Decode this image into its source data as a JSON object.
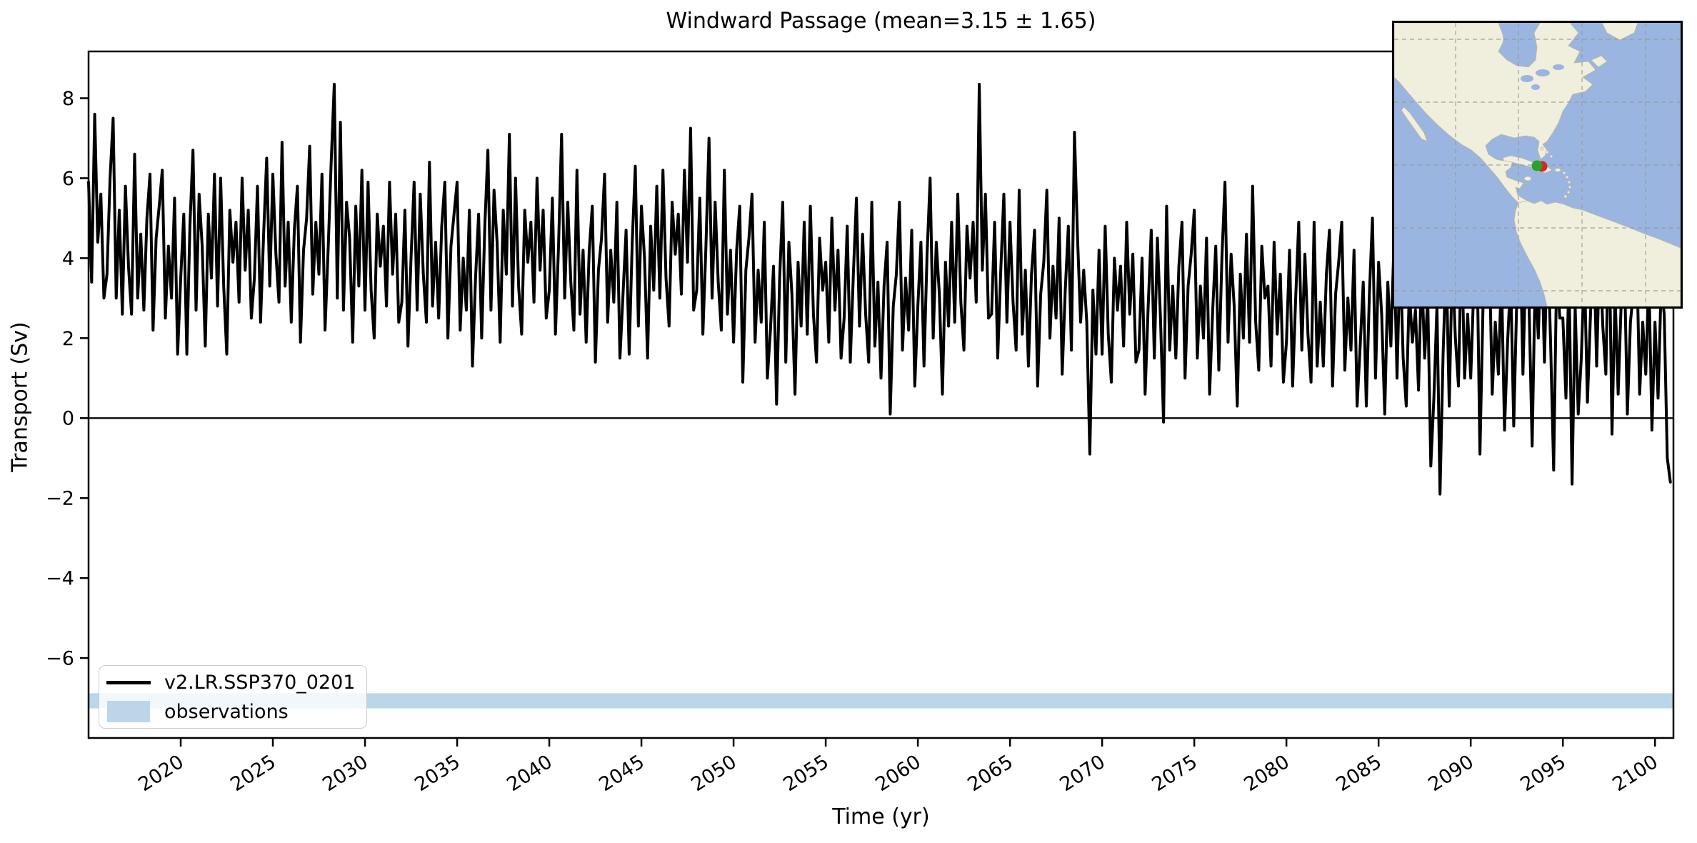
{
  "title": "Windward Passage (mean=3.15 ± 1.65)",
  "axes": {
    "ylabel": "Transport (Sv)",
    "xlabel": "Time (yr)"
  },
  "legend": {
    "entries": [
      {
        "label": "v2.LR.SSP370_0201",
        "type": "line",
        "color": "#000000"
      },
      {
        "label": "observations",
        "type": "patch",
        "color": "#bcd6e8"
      }
    ]
  },
  "chart_data": {
    "type": "line",
    "title": "Windward Passage (mean=3.15 ± 1.65)",
    "xlabel": "Time (yr)",
    "ylabel": "Transport (Sv)",
    "xlim": [
      2015,
      2101
    ],
    "ylim": [
      -8.0,
      9.17
    ],
    "xticks": [
      2020,
      2025,
      2030,
      2035,
      2040,
      2045,
      2050,
      2055,
      2060,
      2065,
      2070,
      2075,
      2080,
      2085,
      2090,
      2095,
      2100
    ],
    "yticks": [
      8,
      6,
      4,
      2,
      0,
      -2,
      -4,
      -6
    ],
    "x_tick_rotation": -33,
    "zero_line": 0,
    "grid": false,
    "legend_position": "lower left",
    "observations_band": {
      "label": "observations",
      "y_range": [
        -7.26,
        -6.88
      ],
      "color": "#1f77b4",
      "alpha": 0.3
    },
    "series": [
      {
        "name": "v2.LR.SSP370_0201",
        "color": "#000000",
        "linewidth": 4,
        "x_start": 2015.0,
        "x_step": 0.1666667,
        "values": [
          5.9,
          3.4,
          7.6,
          4.4,
          5.6,
          3.0,
          3.6,
          6.0,
          7.5,
          3.0,
          5.2,
          2.6,
          5.8,
          3.8,
          2.6,
          6.6,
          3.0,
          4.6,
          2.7,
          5.0,
          6.1,
          2.2,
          4.5,
          5.3,
          6.2,
          2.5,
          4.3,
          3.0,
          5.5,
          1.6,
          3.5,
          5.1,
          1.6,
          4.8,
          6.7,
          2.7,
          5.6,
          4.3,
          1.8,
          5.1,
          3.5,
          6.1,
          2.8,
          6.0,
          3.3,
          1.6,
          5.2,
          3.9,
          4.9,
          2.9,
          6.0,
          3.7,
          5.2,
          2.5,
          3.5,
          5.8,
          2.4,
          4.6,
          6.5,
          3.3,
          6.1,
          4.1,
          2.9,
          6.9,
          3.3,
          4.9,
          2.4,
          4.7,
          5.8,
          1.9,
          4.2,
          5.0,
          6.8,
          3.1,
          4.9,
          3.6,
          6.1,
          2.2,
          4.2,
          6.4,
          8.35,
          3.0,
          7.4,
          2.7,
          5.4,
          4.5,
          1.9,
          5.3,
          3.3,
          6.2,
          2.7,
          5.9,
          3.2,
          2.0,
          5.1,
          3.8,
          4.8,
          2.8,
          5.9,
          3.6,
          5.1,
          2.4,
          2.9,
          5.2,
          1.8,
          4.0,
          5.9,
          2.7,
          5.6,
          3.6,
          2.4,
          6.4,
          2.8,
          4.4,
          2.5,
          4.8,
          5.9,
          2.0,
          4.3,
          5.1,
          5.9,
          2.2,
          4.0,
          2.7,
          5.2,
          1.3,
          3.5,
          5.1,
          2.0,
          4.8,
          6.7,
          2.7,
          5.7,
          4.4,
          1.9,
          5.2,
          3.6,
          7.1,
          2.8,
          6.0,
          3.3,
          2.1,
          5.2,
          3.9,
          4.9,
          2.9,
          6.0,
          3.7,
          5.2,
          2.5,
          3.2,
          5.5,
          2.1,
          4.3,
          7.1,
          3.0,
          5.4,
          3.4,
          2.2,
          6.2,
          2.6,
          4.2,
          1.9,
          4.2,
          5.3,
          1.4,
          3.7,
          4.5,
          6.1,
          2.4,
          4.2,
          2.9,
          5.4,
          1.5,
          3.1,
          4.7,
          1.6,
          4.4,
          6.3,
          2.3,
          5.3,
          4.0,
          1.5,
          4.8,
          3.2,
          5.8,
          3.0,
          6.2,
          3.5,
          2.3,
          5.4,
          4.1,
          5.1,
          3.1,
          6.2,
          3.9,
          7.25,
          2.7,
          3.2,
          5.5,
          2.1,
          4.3,
          7.0,
          3.0,
          5.4,
          3.4,
          2.2,
          6.2,
          2.6,
          4.2,
          1.9,
          4.2,
          5.3,
          0.9,
          3.7,
          4.5,
          5.6,
          1.9,
          3.7,
          2.4,
          4.9,
          1.0,
          2.2,
          3.8,
          0.35,
          3.5,
          5.4,
          1.4,
          4.4,
          3.1,
          0.6,
          3.9,
          2.3,
          4.9,
          2.1,
          5.3,
          2.6,
          1.4,
          4.5,
          3.2,
          3.9,
          1.9,
          5.0,
          2.7,
          4.2,
          1.5,
          2.5,
          4.8,
          1.4,
          3.6,
          5.5,
          2.3,
          4.6,
          2.6,
          1.4,
          5.4,
          1.8,
          3.4,
          1.0,
          3.3,
          4.4,
          0.1,
          2.8,
          3.6,
          5.4,
          1.7,
          3.5,
          2.2,
          4.7,
          0.8,
          2.8,
          4.4,
          1.3,
          4.1,
          6.0,
          2.0,
          4.4,
          3.1,
          0.6,
          3.9,
          2.3,
          4.9,
          2.4,
          5.6,
          2.9,
          1.7,
          4.8,
          3.5,
          4.9,
          2.9,
          8.35,
          3.7,
          5.6,
          2.5,
          2.6,
          4.9,
          1.5,
          3.7,
          5.6,
          2.4,
          4.9,
          2.9,
          1.7,
          5.7,
          2.1,
          3.7,
          1.3,
          3.6,
          4.7,
          0.8,
          3.1,
          3.9,
          5.7,
          2.0,
          3.8,
          2.5,
          5.0,
          1.1,
          3.2,
          4.8,
          1.7,
          7.15,
          4.5,
          2.4,
          3.7,
          2.4,
          -0.9,
          3.2,
          1.6,
          4.2,
          1.6,
          4.8,
          2.1,
          0.9,
          4.0,
          2.7,
          3.8,
          1.8,
          4.9,
          2.6,
          4.1,
          1.4,
          1.7,
          4.0,
          0.6,
          2.8,
          4.7,
          1.5,
          4.5,
          2.5,
          -0.1,
          5.3,
          1.7,
          3.3,
          1.5,
          3.8,
          4.9,
          1.0,
          3.3,
          4.1,
          5.2,
          1.5,
          3.3,
          2.0,
          4.5,
          0.6,
          2.7,
          4.3,
          1.2,
          4.0,
          5.9,
          1.9,
          4.1,
          2.8,
          0.3,
          3.6,
          2.0,
          4.6,
          1.9,
          5.8,
          2.4,
          1.2,
          4.3,
          3.0,
          3.3,
          1.3,
          4.4,
          2.1,
          3.6,
          0.9,
          1.9,
          4.2,
          0.8,
          3.0,
          4.9,
          1.7,
          4.1,
          2.1,
          0.9,
          4.9,
          1.3,
          2.9,
          1.3,
          3.6,
          4.7,
          0.8,
          3.1,
          3.9,
          4.9,
          1.2,
          3.0,
          1.7,
          4.2,
          0.3,
          1.8,
          3.4,
          0.3,
          3.1,
          5.0,
          1.0,
          3.9,
          2.6,
          0.1,
          3.4,
          1.8,
          4.4,
          1.0,
          4.2,
          1.5,
          0.3,
          3.2,
          1.9,
          2.7,
          0.7,
          3.8,
          1.5,
          3.0,
          -1.2,
          0.5,
          2.8,
          -1.9,
          1.6,
          4.0,
          0.3,
          4.0,
          2.0,
          0.8,
          4.6,
          1.0,
          2.6,
          1.0,
          3.3,
          4.4,
          -0.9,
          2.8,
          3.6,
          4.3,
          0.6,
          2.4,
          1.1,
          3.6,
          -0.3,
          1.9,
          3.5,
          -0.2,
          3.0,
          4.9,
          1.1,
          4.1,
          2.8,
          -0.7,
          3.6,
          2.0,
          4.6,
          1.4,
          4.6,
          1.9,
          -1.3,
          3.8,
          2.5,
          2.5,
          0.5,
          3.6,
          -1.65,
          2.8,
          0.1,
          1.5,
          3.8,
          0.4,
          2.6,
          4.5,
          1.3,
          4.3,
          2.3,
          1.1,
          5.1,
          -0.4,
          3.1,
          0.6,
          2.9,
          4.0,
          0.1,
          2.4,
          3.2,
          4.3,
          0.6,
          2.4,
          1.1,
          3.6,
          -0.3,
          2.4,
          0.5,
          3.3,
          2.6,
          -1.0,
          -1.6
        ]
      }
    ]
  },
  "inset_map": {
    "region": "Caribbean / Americas locator",
    "ocean_color": "#9ab5e0",
    "land_color": "#f0eedd",
    "coast_color": "#bdb89c",
    "gridline_color": "#999999",
    "marker_green": "#2ca02c",
    "marker_red": "#d62728"
  }
}
